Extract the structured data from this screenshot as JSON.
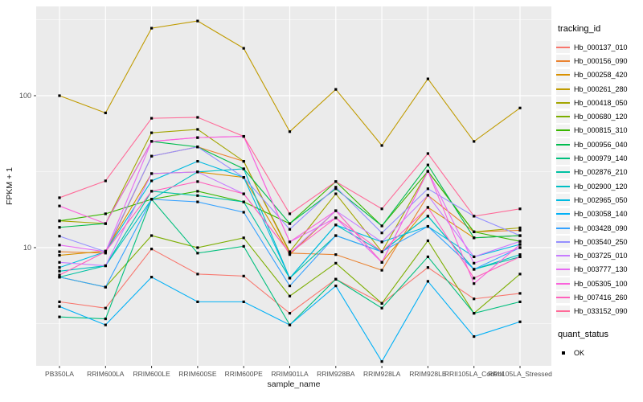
{
  "figure": {
    "background": "#FFFFFF",
    "panel_bg": "#EBEBEB",
    "grid_color": "#FFFFFF",
    "tick_label_color": "#4D4D4D",
    "title_color": "#1A1A1A",
    "legend_key_bg": "#F2F2F2",
    "point_color": "#000000"
  },
  "chart_data": {
    "type": "line",
    "xlabel": "sample_name",
    "ylabel": "FPKM + 1",
    "y_scale": "log10",
    "y_ticks": [
      10,
      100
    ],
    "y_minor": [
      3.162,
      31.62,
      316.2
    ],
    "ylim": [
      1.67,
      386
    ],
    "grid": true,
    "point_marker": "square",
    "legend": {
      "title": "tracking_id",
      "position": "right"
    },
    "quant_status": {
      "title": "quant_status",
      "items": [
        {
          "label": "OK",
          "marker": "black-square"
        }
      ]
    },
    "categories": [
      "PB350LA",
      "RRIM600LA",
      "RRIM600LE",
      "RRIM600SE",
      "RRIM600PE",
      "RRIM901LA",
      "RRIM928BA",
      "RRIM928LA",
      "RRIM928LE",
      "RRII105LA_Control",
      "RRII105LA_Stressed"
    ],
    "series": [
      {
        "name": "Hb_000137_010",
        "color": "#F8766D",
        "values": [
          4.4,
          4.0,
          9.8,
          6.7,
          6.5,
          3.7,
          6.2,
          4.3,
          7.4,
          4.6,
          5.0
        ]
      },
      {
        "name": "Hb_000156_090",
        "color": "#EA8331",
        "values": [
          9.4,
          9.2,
          40,
          46,
          37,
          9.2,
          9.0,
          7.1,
          22.1,
          12.7,
          13
        ]
      },
      {
        "name": "Hb_000258_420",
        "color": "#D89000",
        "values": [
          8.9,
          9.5,
          30.7,
          31.5,
          29,
          9.0,
          17.5,
          8.0,
          18.4,
          11.6,
          12
        ]
      },
      {
        "name": "Hb_000261_280",
        "color": "#C09B00",
        "values": [
          100,
          77,
          278,
          310,
          205,
          58,
          110,
          47,
          129,
          50,
          83
        ]
      },
      {
        "name": "Hb_000418_050",
        "color": "#A3A500",
        "values": [
          15.0,
          14.4,
          57,
          60,
          37,
          9.4,
          22.6,
          9.4,
          31.8,
          12.7,
          13.5
        ]
      },
      {
        "name": "Hb_000680_120",
        "color": "#7CAE00",
        "values": [
          6.4,
          5.5,
          12.0,
          10.0,
          11.6,
          4.8,
          7.9,
          4.3,
          11.1,
          3.7,
          6.7
        ]
      },
      {
        "name": "Hb_000815_310",
        "color": "#39B600",
        "values": [
          15.0,
          16.7,
          20.8,
          23.5,
          20,
          14.4,
          27.2,
          13.9,
          31.8,
          12.7,
          11
        ]
      },
      {
        "name": "Hb_000956_040",
        "color": "#00BB4E",
        "values": [
          13.6,
          14.4,
          50,
          46,
          33,
          14.4,
          24.4,
          13.9,
          35,
          11.6,
          12
        ]
      },
      {
        "name": "Hb_000979_140",
        "color": "#00BF7D",
        "values": [
          3.5,
          3.4,
          20.8,
          9.2,
          10.2,
          3.1,
          6.2,
          4.0,
          8.7,
          3.7,
          4.4
        ]
      },
      {
        "name": "Hb_002876_210",
        "color": "#00C1A3",
        "values": [
          6.4,
          7.6,
          23.5,
          22,
          20,
          6.3,
          12.0,
          9.4,
          16.1,
          7.2,
          8.7
        ]
      },
      {
        "name": "Hb_002900_120",
        "color": "#00BFC4",
        "values": [
          7.0,
          7.6,
          20.8,
          31.5,
          33,
          6.3,
          14.1,
          9.4,
          16.1,
          7.2,
          9.0
        ]
      },
      {
        "name": "Hb_002965_050",
        "color": "#00BAE0",
        "values": [
          7.4,
          9.4,
          27.5,
          37,
          29,
          6.3,
          14.1,
          10.9,
          13.8,
          8.7,
          10.5
        ]
      },
      {
        "name": "Hb_003058_140",
        "color": "#00B0F6",
        "values": [
          4.1,
          3.1,
          6.4,
          4.4,
          4.4,
          3.1,
          5.6,
          1.78,
          6.0,
          2.6,
          3.25
        ]
      },
      {
        "name": "Hb_003428_090",
        "color": "#35A2FF",
        "values": [
          6.4,
          5.5,
          20.8,
          20,
          17.1,
          5.6,
          12.0,
          9.4,
          13.8,
          7.2,
          10
        ]
      },
      {
        "name": "Hb_003540_250",
        "color": "#9590FF",
        "values": [
          11.9,
          9.4,
          40,
          46,
          29,
          13.2,
          25,
          12.5,
          24.4,
          16.1,
          12
        ]
      },
      {
        "name": "Hb_003725_010",
        "color": "#C77CFF",
        "values": [
          8.0,
          7.6,
          30.7,
          31.5,
          22.6,
          9.2,
          17.5,
          10.9,
          22.1,
          8.7,
          11
        ]
      },
      {
        "name": "Hb_003777_130",
        "color": "#E76BF3",
        "values": [
          10.4,
          9.4,
          50,
          53,
          54,
          10.9,
          15.7,
          8.0,
          31.8,
          7.9,
          10
        ]
      },
      {
        "name": "Hb_005305_100",
        "color": "#FA62DB",
        "values": [
          18.8,
          14.4,
          50,
          53,
          54,
          10.9,
          17.5,
          8.0,
          31.8,
          5.8,
          10.5
        ]
      },
      {
        "name": "Hb_007416_260",
        "color": "#FF62BC",
        "values": [
          6.6,
          9.4,
          23.5,
          27.2,
          22.6,
          9.2,
          15.7,
          9.4,
          18.4,
          6.3,
          8.7
        ]
      },
      {
        "name": "Hb_033152_090",
        "color": "#FF6A98",
        "values": [
          21.3,
          27.5,
          71,
          72,
          54,
          16.7,
          27.2,
          18,
          41.6,
          16.1,
          18
        ]
      }
    ]
  }
}
